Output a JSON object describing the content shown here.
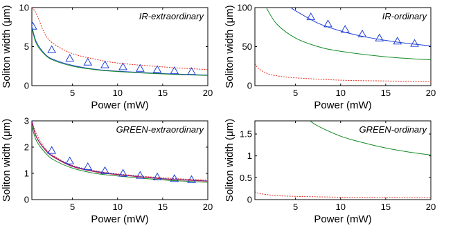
{
  "chart_data": [
    {
      "type": "line",
      "title": "IR-extraordinary",
      "xlabel": "Power (mW)",
      "ylabel": "Soliton width (μm)",
      "xlim": [
        0.5,
        20
      ],
      "ylim": [
        0,
        10
      ],
      "xticks": [
        5,
        10,
        15,
        20
      ],
      "yticks": [
        0,
        5,
        10
      ],
      "series": [
        {
          "style": "dotted",
          "color": "#e8291c",
          "x": [
            0.5,
            1,
            2,
            3,
            5,
            7.5,
            10,
            15,
            20
          ],
          "y": [
            10,
            9.2,
            6.5,
            5.3,
            4.1,
            3.4,
            2.9,
            2.4,
            2.05
          ]
        },
        {
          "style": "solid",
          "color": "#1f3fd8",
          "x": [
            0.5,
            1,
            2,
            3,
            5,
            7.5,
            10,
            15,
            20
          ],
          "y": [
            7.6,
            5.6,
            4.0,
            3.3,
            2.6,
            2.1,
            1.85,
            1.55,
            1.35
          ]
        },
        {
          "style": "solid",
          "color": "#138a24",
          "x": [
            0.5,
            1,
            2,
            3,
            5,
            7.5,
            10,
            15,
            20
          ],
          "y": [
            7.4,
            5.4,
            3.9,
            3.2,
            2.5,
            2.05,
            1.8,
            1.5,
            1.3
          ]
        },
        {
          "style": "markers",
          "color": "#1f3fd8",
          "marker": "triangle",
          "x": [
            0.6,
            2.7,
            4.7,
            6.7,
            8.6,
            10.6,
            12.5,
            14.4,
            16.3,
            18.2
          ],
          "y": [
            7.6,
            4.6,
            3.5,
            3.0,
            2.65,
            2.4,
            2.2,
            2.05,
            1.9,
            1.8
          ]
        }
      ]
    },
    {
      "type": "line",
      "title": "IR-ordinary",
      "xlabel": "Power (mW)",
      "ylabel": "Soliton width (μm)",
      "xlim": [
        0.5,
        20
      ],
      "ylim": [
        0,
        100
      ],
      "xticks": [
        5,
        10,
        15,
        20
      ],
      "yticks": [
        0,
        50,
        100
      ],
      "series": [
        {
          "style": "solid",
          "color": "#1f3fd8",
          "x": [
            4.5,
            5,
            7.5,
            10,
            12.5,
            15,
            17.5,
            20
          ],
          "y": [
            100,
            96,
            80,
            70,
            63,
            58,
            54,
            51
          ]
        },
        {
          "style": "solid",
          "color": "#138a24",
          "x": [
            1.8,
            2,
            3,
            5,
            7.5,
            10,
            15,
            20
          ],
          "y": [
            100,
            95,
            78,
            61,
            50,
            44,
            37,
            33
          ]
        },
        {
          "style": "dotted",
          "color": "#e8291c",
          "x": [
            0.5,
            1,
            2,
            3,
            5,
            10,
            15,
            20
          ],
          "y": [
            28,
            21,
            15,
            12.5,
            10,
            7,
            6,
            5.3
          ]
        },
        {
          "style": "markers",
          "color": "#1f3fd8",
          "marker": "triangle",
          "x": [
            6.7,
            8.6,
            10.5,
            12.4,
            14.3,
            16.3,
            18.2
          ],
          "y": [
            88,
            79,
            72,
            66,
            61,
            57,
            54
          ]
        }
      ]
    },
    {
      "type": "line",
      "title": "GREEN-extraordinary",
      "xlabel": "Power (mW)",
      "ylabel": "Soliton width (μm)",
      "xlim": [
        0.5,
        20
      ],
      "ylim": [
        0,
        3
      ],
      "xticks": [
        5,
        10,
        15,
        20
      ],
      "yticks": [
        0,
        1,
        2,
        3
      ],
      "series": [
        {
          "style": "dotted",
          "color": "#e8291c",
          "x": [
            0.5,
            1,
            2,
            3,
            5,
            7.5,
            10,
            15,
            20
          ],
          "y": [
            3.0,
            2.5,
            1.95,
            1.65,
            1.3,
            1.1,
            0.98,
            0.83,
            0.74
          ]
        },
        {
          "style": "solid",
          "color": "#1f3fd8",
          "x": [
            0.5,
            1,
            2,
            3,
            5,
            7.5,
            10,
            15,
            20
          ],
          "y": [
            3.0,
            2.4,
            1.9,
            1.62,
            1.28,
            1.08,
            0.96,
            0.8,
            0.71
          ]
        },
        {
          "style": "solid",
          "color": "#c0134f",
          "x": [
            0.5,
            1,
            2,
            3,
            5,
            7.5,
            10,
            15,
            20
          ],
          "y": [
            2.95,
            2.38,
            1.88,
            1.6,
            1.26,
            1.06,
            0.95,
            0.79,
            0.7
          ]
        },
        {
          "style": "solid",
          "color": "#138a24",
          "x": [
            0.5,
            1,
            2,
            3,
            5,
            7.5,
            10,
            15,
            20
          ],
          "y": [
            2.8,
            2.25,
            1.78,
            1.5,
            1.2,
            1.0,
            0.9,
            0.75,
            0.66
          ]
        },
        {
          "style": "markers",
          "color": "#1f3fd8",
          "marker": "triangle",
          "x": [
            2.7,
            4.7,
            6.7,
            8.6,
            10.6,
            12.5,
            14.4,
            16.3,
            18.2
          ],
          "y": [
            1.87,
            1.47,
            1.25,
            1.1,
            1.0,
            0.92,
            0.86,
            0.8,
            0.76
          ]
        }
      ]
    },
    {
      "type": "line",
      "title": "GREEN-ordinary",
      "xlabel": "Power (mW)",
      "ylabel": "Soliton width (μm)",
      "xlim": [
        0.5,
        20
      ],
      "ylim": [
        0,
        1.8
      ],
      "xticks": [
        5,
        10,
        15,
        20
      ],
      "yticks": [
        0,
        0.5,
        1,
        1.5
      ],
      "series": [
        {
          "style": "solid",
          "color": "#138a24",
          "x": [
            6.6,
            7.5,
            10,
            12.5,
            15,
            17.5,
            20
          ],
          "y": [
            1.8,
            1.68,
            1.45,
            1.3,
            1.18,
            1.09,
            1.02
          ]
        },
        {
          "style": "dotted",
          "color": "#e8291c",
          "x": [
            0.5,
            1,
            2,
            3,
            5,
            10,
            15,
            20
          ],
          "y": [
            0.18,
            0.14,
            0.11,
            0.09,
            0.075,
            0.055,
            0.045,
            0.04
          ]
        }
      ]
    }
  ]
}
